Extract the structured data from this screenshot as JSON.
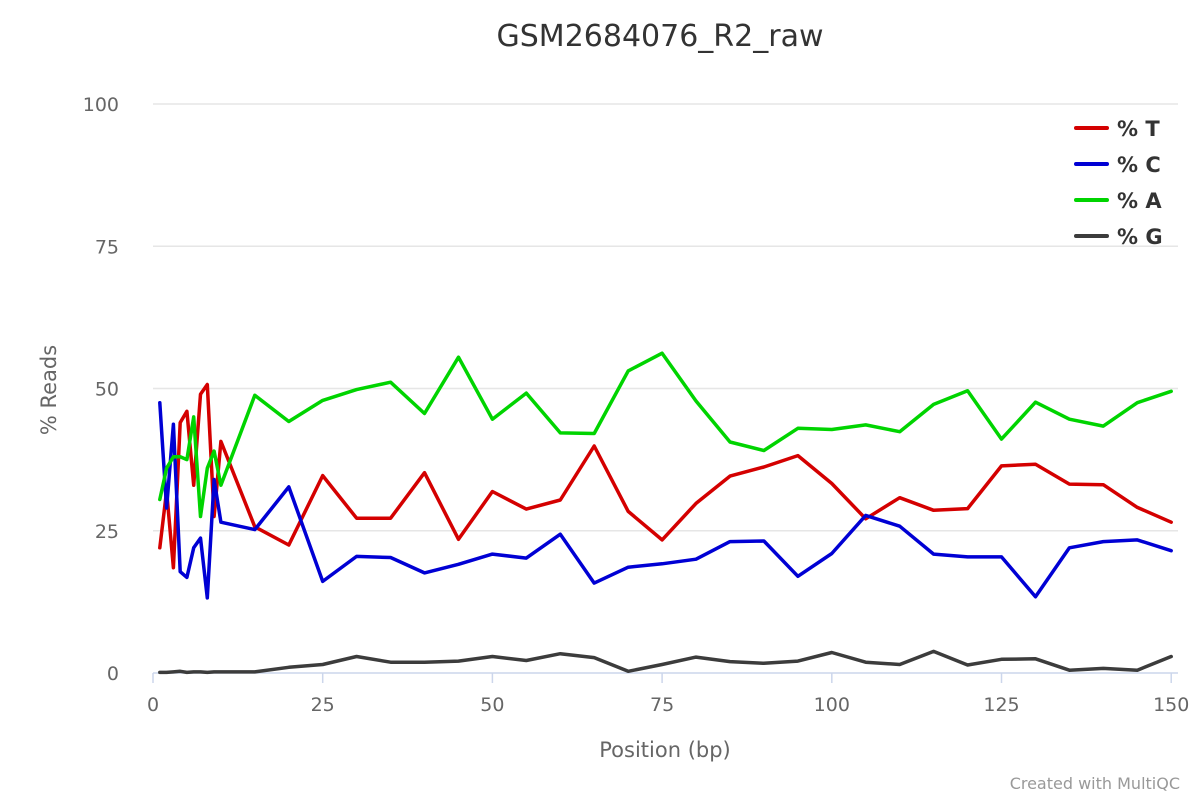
{
  "chart_data": {
    "type": "line",
    "title": "GSM2684076_R2_raw",
    "xlabel": "Position (bp)",
    "ylabel": "% Reads",
    "xlim": [
      0,
      151
    ],
    "ylim": [
      0,
      100
    ],
    "xticks": [
      0,
      25,
      50,
      75,
      100,
      125,
      150
    ],
    "yticks": [
      0,
      25,
      50,
      75,
      100
    ],
    "grid": true,
    "legend_position": "top-right",
    "x": [
      1,
      2,
      3,
      4,
      5,
      6,
      7,
      8,
      9,
      10,
      15,
      20,
      25,
      30,
      35,
      40,
      45,
      50,
      55,
      60,
      65,
      70,
      75,
      80,
      85,
      90,
      95,
      100,
      105,
      110,
      115,
      120,
      125,
      130,
      135,
      140,
      145,
      150
    ],
    "series": [
      {
        "name": "% T",
        "color": "#d40000",
        "values": [
          22,
          32,
          18.5,
          44,
          46,
          33,
          49,
          50.7,
          27.5,
          40.7,
          25.7,
          22.5,
          34.7,
          27.2,
          27.2,
          35.2,
          23.5,
          31.9,
          28.8,
          30.4,
          39.9,
          28.4,
          23.4,
          29.8,
          34.6,
          36.2,
          38.2,
          33.3,
          27.1,
          30.8,
          28.6,
          28.9,
          36.4,
          36.7,
          33.2,
          33.1,
          29.1,
          26.5
        ]
      },
      {
        "name": "% C",
        "color": "#0000d4",
        "values": [
          47.5,
          29,
          43.7,
          17.8,
          16.8,
          22,
          23.7,
          13.2,
          34,
          26.5,
          25.2,
          32.7,
          16.1,
          20.5,
          20.3,
          17.6,
          19.1,
          20.9,
          20.2,
          24.4,
          15.8,
          18.6,
          19.2,
          20,
          23.1,
          23.2,
          17,
          21,
          27.7,
          25.8,
          20.9,
          20.4,
          20.4,
          13.4,
          22,
          23.1,
          23.4,
          21.5
        ]
      },
      {
        "name": "% A",
        "color": "#00d400",
        "values": [
          30.5,
          36,
          38,
          38,
          37.5,
          45,
          27.5,
          36,
          39,
          33,
          48.8,
          44.2,
          47.9,
          49.8,
          51.1,
          45.6,
          55.5,
          44.6,
          49.2,
          42.2,
          42.1,
          53.1,
          56.2,
          47.8,
          40.6,
          39.1,
          43,
          42.8,
          43.6,
          42.4,
          47.2,
          49.6,
          41.1,
          47.6,
          44.6,
          43.4,
          47.5,
          49.5
        ]
      },
      {
        "name": "% G",
        "color": "#3c3c3c",
        "values": [
          0.1,
          0.1,
          0.2,
          0.3,
          0.1,
          0.2,
          0.2,
          0.1,
          0.2,
          0.2,
          0.2,
          1,
          1.5,
          2.9,
          1.9,
          1.9,
          2.1,
          2.9,
          2.2,
          3.4,
          2.7,
          0.3,
          1.5,
          2.8,
          2,
          1.7,
          2.1,
          3.6,
          1.9,
          1.5,
          3.8,
          1.4,
          2.4,
          2.5,
          0.5,
          0.8,
          0.5,
          2.9
        ]
      }
    ]
  },
  "credit": "Created with MultiQC"
}
